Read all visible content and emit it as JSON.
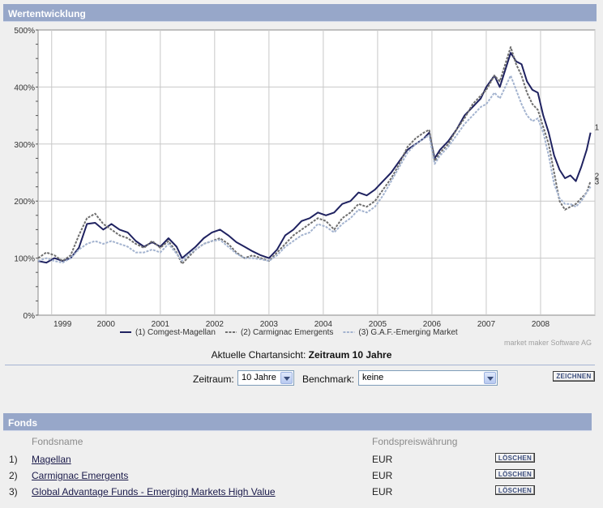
{
  "panel_title": "Wertentwicklung",
  "chart_data": {
    "type": "line",
    "title": "",
    "xlabel": "",
    "ylabel": "",
    "ylim": [
      0,
      500
    ],
    "xlim": [
      1998.75,
      2009.0
    ],
    "y_ticks": [
      0,
      100,
      200,
      300,
      400,
      500
    ],
    "y_tick_labels": [
      "0%",
      "100%",
      "200%",
      "300%",
      "400%",
      "500%"
    ],
    "x_tick_labels": [
      "1999",
      "2000",
      "2001",
      "2002",
      "2003",
      "2004",
      "2005",
      "2006",
      "2007",
      "2008"
    ],
    "x_tick_positions": [
      1999.2,
      2000.0,
      2001.0,
      2002.0,
      2003.0,
      2004.0,
      2005.0,
      2006.0,
      2007.0,
      2008.0
    ],
    "grid": true,
    "series": [
      {
        "name": "(1) Comgest-Magellan",
        "end_label": "1",
        "color": "#1f2260",
        "style": "solid",
        "points": [
          [
            1998.75,
            95
          ],
          [
            1998.9,
            92
          ],
          [
            1999.05,
            100
          ],
          [
            1999.2,
            95
          ],
          [
            1999.35,
            100
          ],
          [
            1999.5,
            118
          ],
          [
            1999.65,
            160
          ],
          [
            1999.8,
            162
          ],
          [
            1999.95,
            150
          ],
          [
            2000.1,
            160
          ],
          [
            2000.25,
            150
          ],
          [
            2000.4,
            145
          ],
          [
            2000.55,
            130
          ],
          [
            2000.7,
            120
          ],
          [
            2000.85,
            128
          ],
          [
            2001.0,
            120
          ],
          [
            2001.15,
            135
          ],
          [
            2001.3,
            120
          ],
          [
            2001.4,
            100
          ],
          [
            2001.5,
            108
          ],
          [
            2001.65,
            120
          ],
          [
            2001.8,
            135
          ],
          [
            2001.95,
            145
          ],
          [
            2002.1,
            150
          ],
          [
            2002.25,
            140
          ],
          [
            2002.4,
            128
          ],
          [
            2002.55,
            120
          ],
          [
            2002.7,
            112
          ],
          [
            2002.85,
            105
          ],
          [
            2003.0,
            100
          ],
          [
            2003.15,
            115
          ],
          [
            2003.3,
            140
          ],
          [
            2003.45,
            150
          ],
          [
            2003.6,
            165
          ],
          [
            2003.75,
            170
          ],
          [
            2003.9,
            180
          ],
          [
            2004.05,
            175
          ],
          [
            2004.2,
            180
          ],
          [
            2004.35,
            195
          ],
          [
            2004.5,
            200
          ],
          [
            2004.65,
            215
          ],
          [
            2004.8,
            210
          ],
          [
            2004.95,
            220
          ],
          [
            2005.1,
            235
          ],
          [
            2005.25,
            250
          ],
          [
            2005.4,
            270
          ],
          [
            2005.55,
            290
          ],
          [
            2005.7,
            300
          ],
          [
            2005.85,
            310
          ],
          [
            2005.95,
            320
          ],
          [
            2006.05,
            275
          ],
          [
            2006.15,
            290
          ],
          [
            2006.3,
            305
          ],
          [
            2006.45,
            325
          ],
          [
            2006.6,
            350
          ],
          [
            2006.75,
            365
          ],
          [
            2006.9,
            380
          ],
          [
            2007.0,
            400
          ],
          [
            2007.15,
            420
          ],
          [
            2007.25,
            400
          ],
          [
            2007.35,
            430
          ],
          [
            2007.45,
            460
          ],
          [
            2007.55,
            445
          ],
          [
            2007.65,
            440
          ],
          [
            2007.75,
            410
          ],
          [
            2007.85,
            395
          ],
          [
            2007.95,
            390
          ],
          [
            2008.05,
            350
          ],
          [
            2008.15,
            320
          ],
          [
            2008.25,
            280
          ],
          [
            2008.35,
            255
          ],
          [
            2008.45,
            240
          ],
          [
            2008.55,
            245
          ],
          [
            2008.65,
            235
          ],
          [
            2008.75,
            260
          ],
          [
            2008.85,
            290
          ],
          [
            2008.92,
            320
          ]
        ]
      },
      {
        "name": "(2) Carmignac Emergents",
        "end_label": "2",
        "color": "#6e6e6e",
        "style": "dashed",
        "points": [
          [
            1998.75,
            100
          ],
          [
            1998.9,
            110
          ],
          [
            1999.05,
            105
          ],
          [
            1999.2,
            95
          ],
          [
            1999.35,
            105
          ],
          [
            1999.5,
            140
          ],
          [
            1999.65,
            170
          ],
          [
            1999.8,
            178
          ],
          [
            1999.95,
            160
          ],
          [
            2000.1,
            150
          ],
          [
            2000.25,
            140
          ],
          [
            2000.4,
            135
          ],
          [
            2000.55,
            125
          ],
          [
            2000.7,
            118
          ],
          [
            2000.85,
            130
          ],
          [
            2001.0,
            118
          ],
          [
            2001.15,
            130
          ],
          [
            2001.3,
            110
          ],
          [
            2001.4,
            90
          ],
          [
            2001.5,
            100
          ],
          [
            2001.65,
            115
          ],
          [
            2001.8,
            125
          ],
          [
            2001.95,
            130
          ],
          [
            2002.1,
            135
          ],
          [
            2002.25,
            125
          ],
          [
            2002.4,
            110
          ],
          [
            2002.55,
            100
          ],
          [
            2002.7,
            105
          ],
          [
            2002.85,
            100
          ],
          [
            2003.0,
            95
          ],
          [
            2003.15,
            110
          ],
          [
            2003.3,
            125
          ],
          [
            2003.45,
            140
          ],
          [
            2003.6,
            150
          ],
          [
            2003.75,
            160
          ],
          [
            2003.9,
            170
          ],
          [
            2004.05,
            165
          ],
          [
            2004.2,
            150
          ],
          [
            2004.35,
            170
          ],
          [
            2004.5,
            180
          ],
          [
            2004.65,
            195
          ],
          [
            2004.8,
            190
          ],
          [
            2004.95,
            200
          ],
          [
            2005.1,
            220
          ],
          [
            2005.25,
            240
          ],
          [
            2005.4,
            265
          ],
          [
            2005.55,
            295
          ],
          [
            2005.7,
            310
          ],
          [
            2005.85,
            320
          ],
          [
            2005.95,
            325
          ],
          [
            2006.05,
            270
          ],
          [
            2006.15,
            285
          ],
          [
            2006.3,
            300
          ],
          [
            2006.45,
            325
          ],
          [
            2006.6,
            345
          ],
          [
            2006.75,
            370
          ],
          [
            2006.9,
            385
          ],
          [
            2007.0,
            395
          ],
          [
            2007.15,
            420
          ],
          [
            2007.25,
            410
          ],
          [
            2007.35,
            440
          ],
          [
            2007.45,
            470
          ],
          [
            2007.55,
            440
          ],
          [
            2007.65,
            420
          ],
          [
            2007.75,
            390
          ],
          [
            2007.85,
            370
          ],
          [
            2007.95,
            360
          ],
          [
            2008.05,
            330
          ],
          [
            2008.15,
            300
          ],
          [
            2008.25,
            250
          ],
          [
            2008.35,
            200
          ],
          [
            2008.45,
            185
          ],
          [
            2008.55,
            190
          ],
          [
            2008.65,
            195
          ],
          [
            2008.75,
            205
          ],
          [
            2008.85,
            215
          ],
          [
            2008.92,
            235
          ]
        ]
      },
      {
        "name": "(3) G.A.F.-Emerging Market",
        "end_label": "3",
        "color": "#a3b3cf",
        "style": "dashed",
        "points": [
          [
            1998.75,
            95
          ],
          [
            1998.9,
            100
          ],
          [
            1999.05,
            95
          ],
          [
            1999.2,
            92
          ],
          [
            1999.35,
            100
          ],
          [
            1999.5,
            115
          ],
          [
            1999.65,
            125
          ],
          [
            1999.8,
            130
          ],
          [
            1999.95,
            125
          ],
          [
            2000.1,
            130
          ],
          [
            2000.25,
            125
          ],
          [
            2000.4,
            120
          ],
          [
            2000.55,
            110
          ],
          [
            2000.7,
            110
          ],
          [
            2000.85,
            115
          ],
          [
            2001.0,
            110
          ],
          [
            2001.15,
            125
          ],
          [
            2001.3,
            108
          ],
          [
            2001.4,
            95
          ],
          [
            2001.5,
            105
          ],
          [
            2001.65,
            115
          ],
          [
            2001.8,
            125
          ],
          [
            2001.95,
            130
          ],
          [
            2002.1,
            132
          ],
          [
            2002.25,
            120
          ],
          [
            2002.4,
            108
          ],
          [
            2002.55,
            100
          ],
          [
            2002.7,
            100
          ],
          [
            2002.85,
            98
          ],
          [
            2003.0,
            95
          ],
          [
            2003.15,
            105
          ],
          [
            2003.3,
            120
          ],
          [
            2003.45,
            130
          ],
          [
            2003.6,
            140
          ],
          [
            2003.75,
            145
          ],
          [
            2003.9,
            160
          ],
          [
            2004.05,
            155
          ],
          [
            2004.2,
            145
          ],
          [
            2004.35,
            160
          ],
          [
            2004.5,
            170
          ],
          [
            2004.65,
            185
          ],
          [
            2004.8,
            180
          ],
          [
            2004.95,
            190
          ],
          [
            2005.1,
            210
          ],
          [
            2005.25,
            235
          ],
          [
            2005.4,
            260
          ],
          [
            2005.55,
            285
          ],
          [
            2005.7,
            300
          ],
          [
            2005.85,
            310
          ],
          [
            2005.95,
            315
          ],
          [
            2006.05,
            265
          ],
          [
            2006.15,
            280
          ],
          [
            2006.3,
            295
          ],
          [
            2006.45,
            315
          ],
          [
            2006.6,
            335
          ],
          [
            2006.75,
            350
          ],
          [
            2006.9,
            365
          ],
          [
            2007.0,
            370
          ],
          [
            2007.15,
            390
          ],
          [
            2007.25,
            380
          ],
          [
            2007.35,
            400
          ],
          [
            2007.45,
            420
          ],
          [
            2007.55,
            395
          ],
          [
            2007.65,
            370
          ],
          [
            2007.75,
            350
          ],
          [
            2007.85,
            340
          ],
          [
            2007.95,
            345
          ],
          [
            2008.05,
            320
          ],
          [
            2008.15,
            280
          ],
          [
            2008.25,
            230
          ],
          [
            2008.35,
            205
          ],
          [
            2008.45,
            195
          ],
          [
            2008.55,
            195
          ],
          [
            2008.65,
            190
          ],
          [
            2008.75,
            200
          ],
          [
            2008.85,
            215
          ],
          [
            2008.92,
            225
          ]
        ]
      }
    ],
    "credit": "market maker Software AG"
  },
  "current_view": {
    "prefix": "Aktuelle Chartansicht:",
    "value": "Zeitraum 10 Jahre"
  },
  "controls": {
    "zeitraum_label": "Zeitraum:",
    "zeitraum_value": "10 Jahre",
    "benchmark_label": "Benchmark:",
    "benchmark_value": "keine",
    "zeichnen_label": "ZEICHNEN"
  },
  "fonds": {
    "title": "Fonds",
    "col_name": "Fondsname",
    "col_currency": "Fondspreiswährung",
    "rows": [
      {
        "num": "1)",
        "name": "Magellan",
        "currency": "EUR",
        "delete_label": "LÖSCHEN"
      },
      {
        "num": "2)",
        "name": "Carmignac Emergents",
        "currency": "EUR",
        "delete_label": "LÖSCHEN"
      },
      {
        "num": "3)",
        "name": "Global Advantage Funds - Emerging Markets High Value",
        "currency": "EUR",
        "delete_label": "LÖSCHEN"
      }
    ]
  }
}
